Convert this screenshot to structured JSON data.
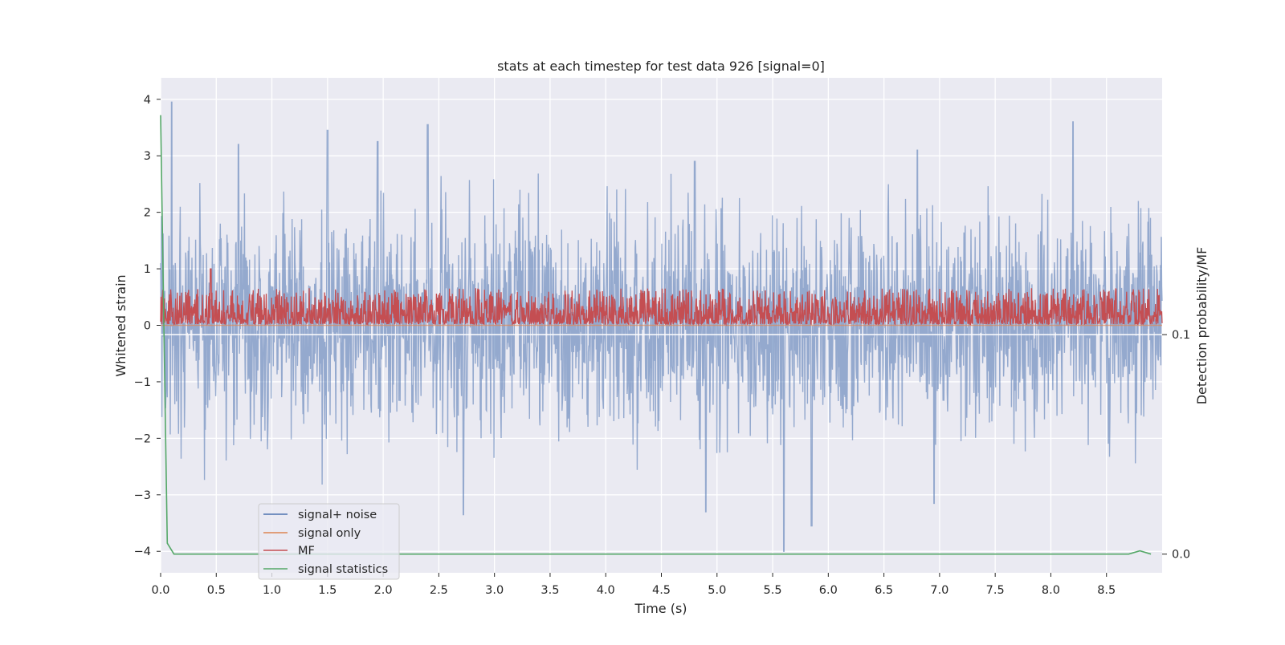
{
  "chart_data": {
    "type": "line",
    "title": "stats at each timestep for test data 926 [signal=0]",
    "xlabel": "Time (s)",
    "ylabel": "Whitened strain",
    "y2label": "Detection probability/MF",
    "xlim": [
      0.0,
      9.0
    ],
    "ylim": [
      -4.38,
      4.38
    ],
    "y2lim": [
      -0.0085,
      0.217
    ],
    "x_ticks": [
      0.0,
      0.5,
      1.0,
      1.5,
      2.0,
      2.5,
      3.0,
      3.5,
      4.0,
      4.5,
      5.0,
      5.5,
      6.0,
      6.5,
      7.0,
      7.5,
      8.0,
      8.5
    ],
    "x_tick_labels": [
      "0.0",
      "0.5",
      "1.0",
      "1.5",
      "2.0",
      "2.5",
      "3.0",
      "3.5",
      "4.0",
      "4.5",
      "5.0",
      "5.5",
      "6.0",
      "6.5",
      "7.0",
      "7.5",
      "8.0",
      "8.5"
    ],
    "y_ticks": [
      -4,
      -3,
      -2,
      -1,
      0,
      1,
      2,
      3,
      4
    ],
    "y_tick_labels": [
      "−4",
      "−3",
      "−2",
      "−1",
      "0",
      "1",
      "2",
      "3",
      "4"
    ],
    "y2_ticks": [
      0.0,
      0.1
    ],
    "y2_tick_labels": [
      "0.0",
      "0.1"
    ],
    "y2_reference_line": 0.1,
    "grid": true,
    "legend_position": "lower-left",
    "series": [
      {
        "name": "signal+ noise",
        "color": "#4c72b0",
        "axis": "left",
        "description_stats": {
          "mean": 0.0,
          "std": 0.95,
          "min": -4.0,
          "max": 3.95
        },
        "notable_peaks": [
          [
            0.1,
            3.95
          ],
          [
            0.7,
            3.2
          ],
          [
            1.5,
            3.45
          ],
          [
            1.95,
            3.25
          ],
          [
            2.4,
            3.55
          ],
          [
            4.8,
            2.9
          ],
          [
            6.8,
            3.1
          ],
          [
            8.2,
            3.6
          ],
          [
            2.72,
            -3.35
          ],
          [
            4.9,
            -3.3
          ],
          [
            5.6,
            -4.0
          ],
          [
            5.85,
            -3.55
          ],
          [
            6.95,
            -3.15
          ]
        ]
      },
      {
        "name": "signal only",
        "color": "#dd8452",
        "axis": "left",
        "values_constant": 0.0
      },
      {
        "name": "MF",
        "color": "#c44e52",
        "axis": "left",
        "description_stats": {
          "mean": 0.22,
          "min": 0.02,
          "max": 1.0
        }
      },
      {
        "name": "signal statistics",
        "color": "#55a868",
        "axis": "right",
        "points": [
          [
            0.0,
            0.2
          ],
          [
            0.03,
            0.1
          ],
          [
            0.06,
            0.005
          ],
          [
            0.12,
            0.0
          ],
          [
            8.7,
            0.0
          ],
          [
            8.8,
            0.0015
          ],
          [
            8.9,
            0.0
          ]
        ]
      }
    ]
  },
  "style": {
    "plot_bg": "#eaeaf2",
    "grid_color": "#ffffff",
    "text_color": "#262626"
  }
}
